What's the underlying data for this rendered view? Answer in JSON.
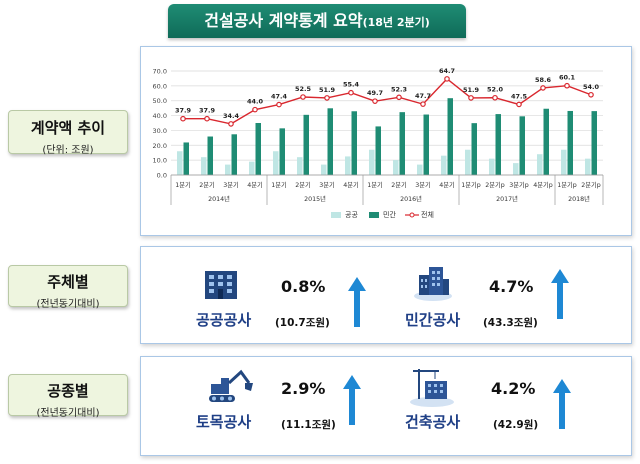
{
  "header": {
    "title": "건설공사 계약통계 요약",
    "subtitle": "(18년 2분기)"
  },
  "left_labels": {
    "trend": {
      "main": "계약액 추이",
      "sub": "(단위: 조원)"
    },
    "by_entity": {
      "main": "주체별",
      "sub": "(전년동기대비)"
    },
    "by_type": {
      "main": "공종별",
      "sub": "(전년동기대비)"
    }
  },
  "colors": {
    "public": "#bfe6e4",
    "private": "#1f8c74",
    "total": "#d9272e",
    "panel_border": "#aac7e6",
    "label_text": "#1f3f86",
    "arrow": "#1e88d4"
  },
  "chart_data": {
    "type": "bar",
    "subtype": "stacked-bar-with-line",
    "categories": [
      "1분기",
      "2분기",
      "3분기",
      "4분기",
      "1분기",
      "2분기",
      "3분기",
      "4분기",
      "1분기",
      "2분기",
      "3분기",
      "4분기",
      "1분기p",
      "2분기p",
      "3분기p",
      "4분기p",
      "1분기p",
      "2분기p"
    ],
    "groups": [
      {
        "label": "2014년",
        "count": 4
      },
      {
        "label": "2015년",
        "count": 4
      },
      {
        "label": "2016년",
        "count": 4
      },
      {
        "label": "2017년",
        "count": 4
      },
      {
        "label": "2018년",
        "count": 2
      }
    ],
    "series": [
      {
        "name": "공공",
        "values": [
          16.0,
          12.0,
          7.0,
          9.0,
          16.0,
          12.0,
          7.0,
          12.5,
          17.0,
          10.0,
          7.0,
          13.0,
          17.0,
          11.0,
          8.0,
          14.0,
          17.0,
          11.0
        ]
      },
      {
        "name": "민간",
        "values": [
          21.9,
          25.9,
          27.4,
          35.0,
          31.4,
          40.5,
          44.9,
          42.9,
          32.7,
          42.3,
          40.7,
          51.7,
          34.9,
          41.0,
          39.5,
          44.6,
          43.1,
          43.0
        ]
      },
      {
        "name": "전체",
        "values": [
          37.9,
          37.9,
          34.4,
          44.0,
          47.4,
          52.5,
          51.9,
          55.4,
          49.7,
          52.3,
          47.7,
          64.7,
          51.9,
          52.0,
          47.5,
          58.6,
          60.1,
          54.0
        ]
      }
    ],
    "data_labels": [
      "37.9",
      "37.9",
      "34.4",
      "44.0",
      "47.4",
      "52.5",
      "51.9",
      "55.4",
      "49.7",
      "52.3",
      "47.7",
      "64.7",
      "51.9",
      "52.0",
      "47.5",
      "58.6",
      "60.1",
      "54.0"
    ],
    "y_ticks": [
      "0.0",
      "10.0",
      "20.0",
      "30.0",
      "40.0",
      "50.0",
      "60.0",
      "70.0"
    ],
    "ylim": [
      0,
      70
    ],
    "legend": [
      "공공",
      "민간",
      "전체"
    ],
    "legend_position": "bottom",
    "grid": true
  },
  "entity": {
    "public": {
      "label": "공공공사",
      "pct": "0.8%",
      "amount": "(10.7조원)",
      "icon": "public-building-icon"
    },
    "private": {
      "label": "민간공사",
      "pct": "4.7%",
      "amount": "(43.3조원)",
      "icon": "private-building-icon"
    }
  },
  "work_type": {
    "civil": {
      "label": "토목공사",
      "pct": "2.9%",
      "amount": "(11.1조원)",
      "icon": "excavator-icon"
    },
    "building": {
      "label": "건축공사",
      "pct": "4.2%",
      "amount": "(42.9원)",
      "icon": "crane-building-icon"
    }
  }
}
